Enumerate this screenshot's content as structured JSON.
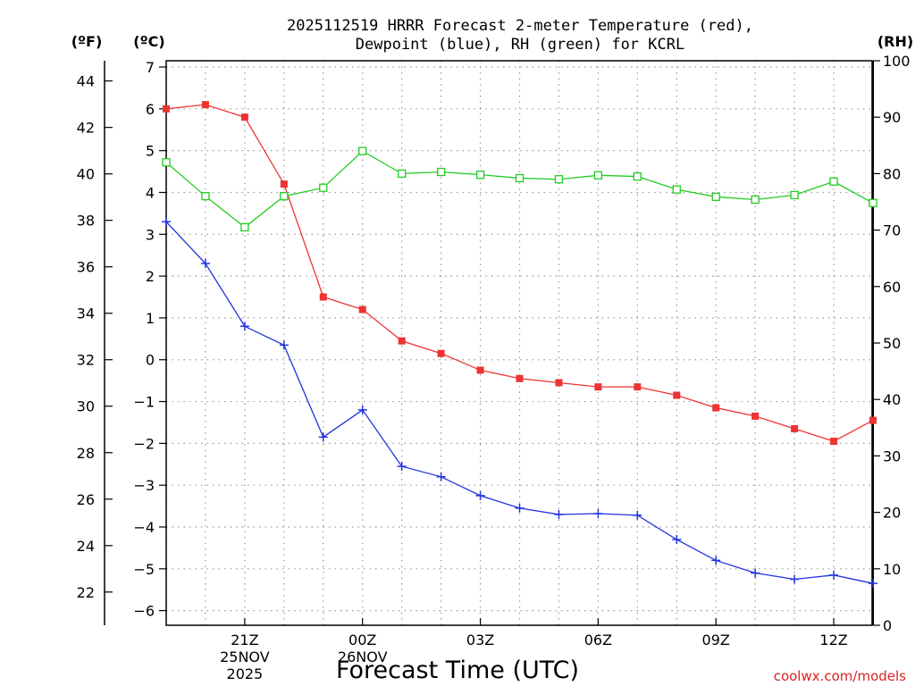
{
  "chart_data": {
    "type": "line",
    "title_line1": "2025112519 HRRR Forecast 2-meter Temperature (red),",
    "title_line2": "Dewpoint (blue), RH (green) for KCRL",
    "unit_f": "(ºF)",
    "unit_c": "(ºC)",
    "unit_rh": "(RH)",
    "xlabel": "Forecast Time (UTC)",
    "watermark": "coolwx.com/models",
    "x": [
      19,
      20,
      21,
      22,
      23,
      24,
      25,
      26,
      27,
      28,
      29,
      30,
      31,
      32,
      33,
      34,
      35,
      36,
      37
    ],
    "xlim": [
      19,
      37
    ],
    "x_ticks": [
      {
        "x": 21,
        "label": "21Z",
        "date": "25NOV",
        "year": "2025"
      },
      {
        "x": 24,
        "label": "00Z",
        "date": "26NOV",
        "year": ""
      },
      {
        "x": 27,
        "label": "03Z",
        "date": "",
        "year": ""
      },
      {
        "x": 30,
        "label": "06Z",
        "date": "",
        "year": ""
      },
      {
        "x": 33,
        "label": "09Z",
        "date": "",
        "year": ""
      },
      {
        "x": 36,
        "label": "12Z",
        "date": "",
        "year": ""
      }
    ],
    "celsius_axis": {
      "range": [
        -6.35,
        7.15
      ],
      "ticks": [
        "7",
        "6",
        "5",
        "4",
        "3",
        "2",
        "1",
        "0",
        "−1",
        "−2",
        "−3",
        "−4",
        "−5",
        "−6"
      ],
      "values": [
        7,
        6,
        5,
        4,
        3,
        2,
        1,
        0,
        -1,
        -2,
        -3,
        -4,
        -5,
        -6
      ]
    },
    "fahrenheit_axis": {
      "ticks": [
        "44",
        "42",
        "40",
        "38",
        "36",
        "34",
        "32",
        "30",
        "28",
        "26",
        "24",
        "22"
      ],
      "values": [
        44,
        42,
        40,
        38,
        36,
        34,
        32,
        30,
        28,
        26,
        24,
        22
      ]
    },
    "rh_axis": {
      "range": [
        0,
        100
      ],
      "ticks": [
        "100",
        "90",
        "80",
        "70",
        "60",
        "50",
        "40",
        "30",
        "20",
        "10",
        "0"
      ],
      "values": [
        100,
        90,
        80,
        70,
        60,
        50,
        40,
        30,
        20,
        10,
        0
      ]
    },
    "series": [
      {
        "name": "Temperature",
        "unit": "C",
        "color": "#ee3333",
        "values": [
          6.0,
          6.1,
          5.8,
          4.2,
          1.5,
          1.2,
          0.45,
          0.15,
          -0.25,
          -0.45,
          -0.55,
          -0.65,
          -0.65,
          -0.85,
          -1.15,
          -1.35,
          -1.65,
          -1.95,
          -1.45
        ]
      },
      {
        "name": "Dewpoint",
        "unit": "C",
        "color": "#2233dd",
        "values": [
          3.3,
          2.3,
          0.8,
          0.35,
          -1.85,
          -1.2,
          -2.55,
          -2.8,
          -3.25,
          -3.55,
          -3.7,
          -3.68,
          -3.72,
          -4.3,
          -4.8,
          -5.1,
          -5.25,
          -5.15,
          -5.35
        ]
      },
      {
        "name": "RH",
        "unit": "%",
        "color": "#22cc22",
        "values": [
          82,
          76,
          70.5,
          76,
          77.5,
          84,
          80,
          80.3,
          79.8,
          79.2,
          79,
          79.7,
          79.5,
          77.2,
          75.9,
          75.4,
          76.2,
          78.6,
          74.8
        ]
      }
    ]
  }
}
